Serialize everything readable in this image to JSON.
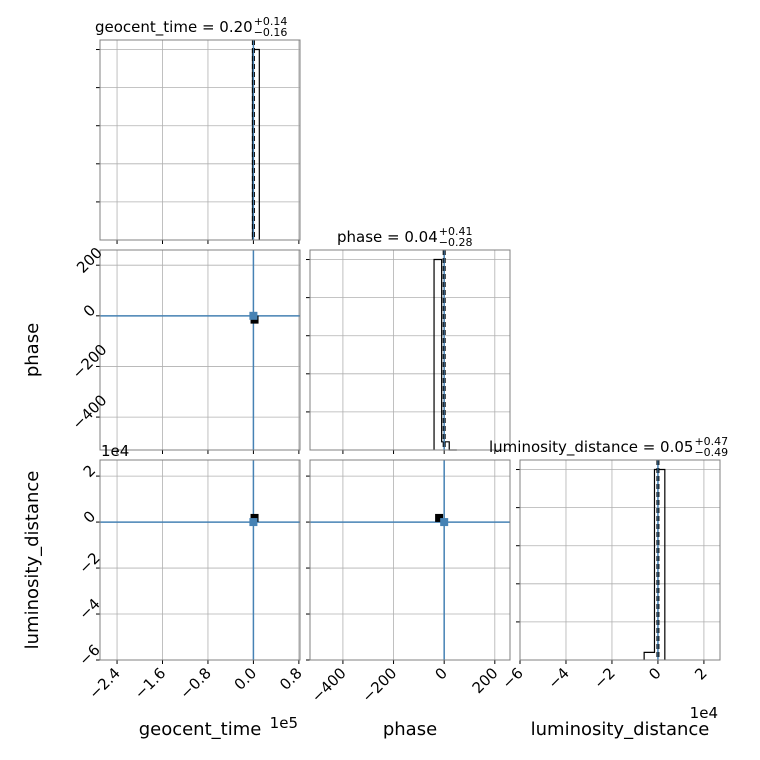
{
  "chart_data": {
    "type": "corner",
    "parameters": [
      "geocent_time",
      "phase",
      "luminosity_distance"
    ],
    "titles": [
      {
        "param": "geocent_time",
        "prefix": "geocent_time = ",
        "median": "0.20",
        "plus": "+0.14",
        "minus": "−0.16"
      },
      {
        "param": "phase",
        "prefix": "phase = ",
        "median": "0.04",
        "plus": "+0.41",
        "minus": "−0.28"
      },
      {
        "param": "luminosity_distance",
        "prefix": "luminosity_distance = ",
        "median": "0.05",
        "plus": "+0.47",
        "minus": "−0.49"
      }
    ],
    "axis_labels": {
      "x": [
        "geocent_time",
        "phase",
        "luminosity_distance"
      ],
      "y": [
        "phase",
        "luminosity_distance"
      ]
    },
    "offset_texts": {
      "geocent_time": "1e5",
      "luminosity_distance": "1e4",
      "lumdist_y": "1e4"
    },
    "ranges": {
      "geocent_time": [
        -270000,
        82000
      ],
      "phase": [
        -530,
        260
      ],
      "luminosity_distance": [
        -60000,
        27000
      ]
    },
    "ticks": {
      "geocent_time": {
        "values": [
          -240000,
          -160000,
          -80000,
          0,
          80000
        ],
        "labels": [
          "−2.4",
          "−1.6",
          "−0.8",
          "0.0",
          "0.8"
        ]
      },
      "phase_x": {
        "values": [
          -400,
          -200,
          0,
          200
        ],
        "labels": [
          "−400",
          "−200",
          "0",
          "200"
        ]
      },
      "phase_y": {
        "values": [
          -400,
          -200,
          0,
          200
        ],
        "labels": [
          "−400",
          "−200",
          "0",
          "200"
        ]
      },
      "luminosity_distance": {
        "values": [
          -60000,
          -40000,
          -20000,
          0,
          20000
        ],
        "labels": [
          "−6",
          "−4",
          "−2",
          "0",
          "2"
        ]
      }
    },
    "truths": {
      "geocent_time": 0,
      "phase": 0,
      "luminosity_distance": 0
    },
    "histograms": {
      "geocent_time": {
        "edges": [
          -1600,
          4400,
          10400
        ],
        "heights": [
          1.0,
          1.0
        ],
        "ymax": 1.05
      },
      "phase": {
        "edges": [
          -40,
          -10,
          20,
          50
        ],
        "heights": [
          1.0,
          0.043,
          0.0
        ],
        "ymax": 1.05
      },
      "luminosity_distance": {
        "edges": [
          -6000,
          -1500,
          3000
        ],
        "heights": [
          0.04,
          1.0
        ],
        "ymax": 1.05
      }
    },
    "markers": [
      {
        "panel": "phase-vs-geocent_time",
        "x": 2000,
        "y": -15
      },
      {
        "panel": "lumdist-vs-geocent_time",
        "x": 2000,
        "y": 1800
      },
      {
        "panel": "lumdist-vs-phase",
        "x": -20,
        "y": 1800
      }
    ],
    "grid": true,
    "colors": {
      "truth": "#4682b4",
      "hist": "#000000",
      "grid": "#b0b0b0",
      "spine": "#808080",
      "marker": "#000000"
    }
  }
}
